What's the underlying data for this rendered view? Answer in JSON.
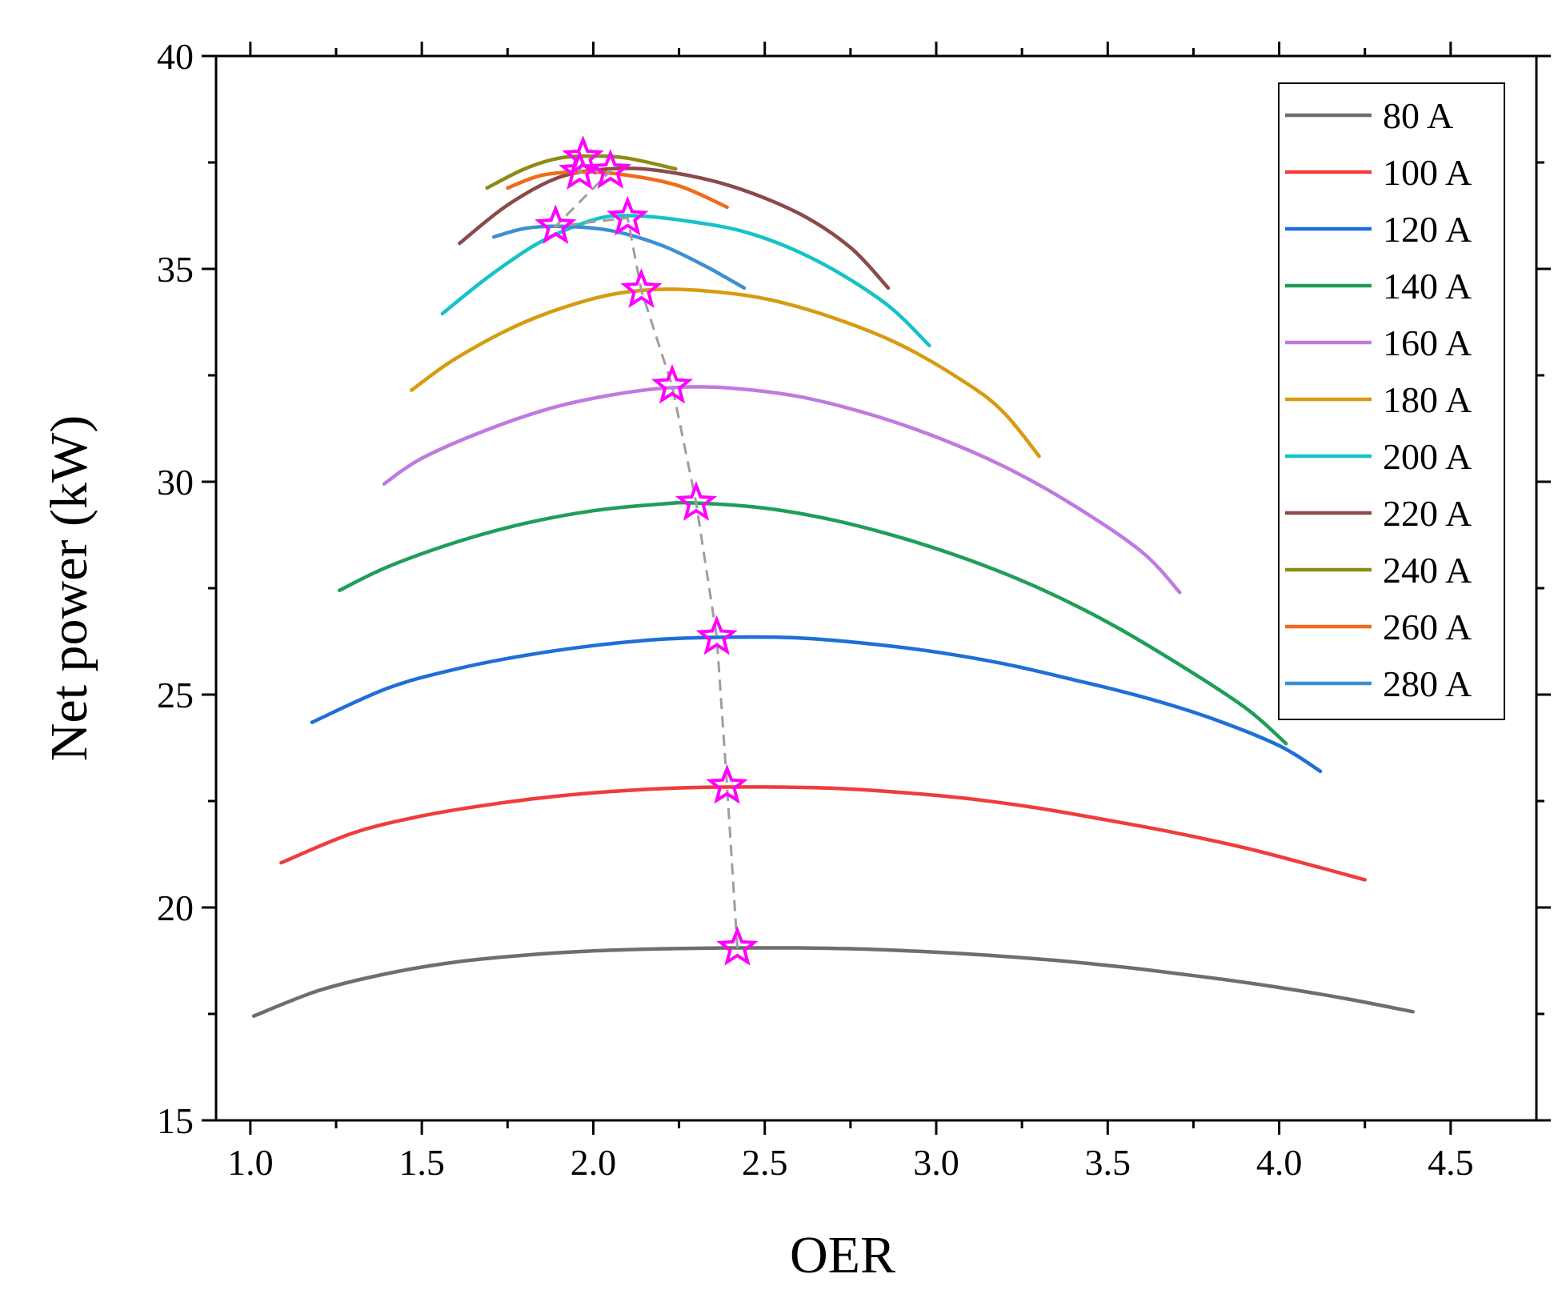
{
  "chart_data": {
    "type": "line",
    "title": "",
    "xlabel": "OER",
    "ylabel": "Net power (kW)",
    "xlim": [
      0.9,
      4.75
    ],
    "ylim": [
      15,
      40
    ],
    "xticks": [
      1.0,
      1.5,
      2.0,
      2.5,
      3.0,
      3.5,
      4.0,
      4.5
    ],
    "xtick_labels": [
      "1.0",
      "1.5",
      "2.0",
      "2.5",
      "3.0",
      "3.5",
      "4.0",
      "4.5"
    ],
    "yticks": [
      15,
      20,
      25,
      30,
      35,
      40
    ],
    "ytick_labels": [
      "15",
      "20",
      "25",
      "30",
      "35",
      "40"
    ],
    "legend_position": "top-right",
    "series": [
      {
        "name": "80 A",
        "color": "#6e6e6e",
        "points": [
          [
            1.01,
            17.45
          ],
          [
            1.2,
            18.05
          ],
          [
            1.4,
            18.45
          ],
          [
            1.6,
            18.72
          ],
          [
            1.8,
            18.88
          ],
          [
            2.0,
            18.98
          ],
          [
            2.2,
            19.03
          ],
          [
            2.4,
            19.05
          ],
          [
            2.6,
            19.05
          ],
          [
            2.8,
            19.02
          ],
          [
            3.0,
            18.95
          ],
          [
            3.2,
            18.85
          ],
          [
            3.4,
            18.72
          ],
          [
            3.6,
            18.55
          ],
          [
            3.8,
            18.35
          ],
          [
            4.0,
            18.12
          ],
          [
            4.2,
            17.85
          ],
          [
            4.39,
            17.55
          ]
        ]
      },
      {
        "name": "100 A",
        "color": "#f03c3c",
        "points": [
          [
            1.09,
            21.05
          ],
          [
            1.3,
            21.75
          ],
          [
            1.5,
            22.15
          ],
          [
            1.7,
            22.42
          ],
          [
            1.9,
            22.62
          ],
          [
            2.1,
            22.75
          ],
          [
            2.3,
            22.82
          ],
          [
            2.5,
            22.83
          ],
          [
            2.7,
            22.8
          ],
          [
            2.9,
            22.7
          ],
          [
            3.1,
            22.55
          ],
          [
            3.3,
            22.33
          ],
          [
            3.5,
            22.05
          ],
          [
            3.7,
            21.75
          ],
          [
            3.9,
            21.4
          ],
          [
            4.1,
            20.98
          ],
          [
            4.25,
            20.65
          ]
        ]
      },
      {
        "name": "120 A",
        "color": "#1f6fd6",
        "points": [
          [
            1.18,
            24.35
          ],
          [
            1.4,
            25.15
          ],
          [
            1.6,
            25.6
          ],
          [
            1.8,
            25.92
          ],
          [
            2.0,
            26.15
          ],
          [
            2.2,
            26.3
          ],
          [
            2.4,
            26.35
          ],
          [
            2.6,
            26.33
          ],
          [
            2.8,
            26.2
          ],
          [
            3.0,
            26.0
          ],
          [
            3.2,
            25.72
          ],
          [
            3.4,
            25.35
          ],
          [
            3.6,
            24.95
          ],
          [
            3.8,
            24.45
          ],
          [
            4.0,
            23.8
          ],
          [
            4.12,
            23.2
          ]
        ]
      },
      {
        "name": "140 A",
        "color": "#1f9e5a",
        "points": [
          [
            1.26,
            27.45
          ],
          [
            1.4,
            28.0
          ],
          [
            1.6,
            28.58
          ],
          [
            1.8,
            29.02
          ],
          [
            2.0,
            29.32
          ],
          [
            2.2,
            29.48
          ],
          [
            2.3,
            29.5
          ],
          [
            2.5,
            29.38
          ],
          [
            2.7,
            29.1
          ],
          [
            2.9,
            28.68
          ],
          [
            3.1,
            28.15
          ],
          [
            3.3,
            27.5
          ],
          [
            3.5,
            26.7
          ],
          [
            3.7,
            25.75
          ],
          [
            3.9,
            24.7
          ],
          [
            4.02,
            23.85
          ]
        ]
      },
      {
        "name": "160 A",
        "color": "#c07adf",
        "points": [
          [
            1.39,
            29.95
          ],
          [
            1.5,
            30.55
          ],
          [
            1.7,
            31.25
          ],
          [
            1.9,
            31.78
          ],
          [
            2.1,
            32.1
          ],
          [
            2.25,
            32.22
          ],
          [
            2.4,
            32.2
          ],
          [
            2.6,
            32.0
          ],
          [
            2.8,
            31.6
          ],
          [
            3.0,
            31.05
          ],
          [
            3.2,
            30.35
          ],
          [
            3.4,
            29.45
          ],
          [
            3.6,
            28.35
          ],
          [
            3.71,
            27.4
          ]
        ]
      },
      {
        "name": "180 A",
        "color": "#d79b10",
        "points": [
          [
            1.47,
            32.15
          ],
          [
            1.6,
            32.9
          ],
          [
            1.8,
            33.75
          ],
          [
            2.0,
            34.3
          ],
          [
            2.15,
            34.5
          ],
          [
            2.3,
            34.5
          ],
          [
            2.5,
            34.3
          ],
          [
            2.7,
            33.85
          ],
          [
            2.9,
            33.2
          ],
          [
            3.1,
            32.25
          ],
          [
            3.2,
            31.6
          ],
          [
            3.3,
            30.6
          ]
        ]
      },
      {
        "name": "200 A",
        "color": "#15c3c7",
        "points": [
          [
            1.56,
            33.95
          ],
          [
            1.7,
            34.85
          ],
          [
            1.85,
            35.65
          ],
          [
            2.0,
            36.15
          ],
          [
            2.1,
            36.25
          ],
          [
            2.25,
            36.15
          ],
          [
            2.45,
            35.85
          ],
          [
            2.65,
            35.2
          ],
          [
            2.85,
            34.2
          ],
          [
            2.98,
            33.2
          ]
        ]
      },
      {
        "name": "220 A",
        "color": "#8c4a4a",
        "points": [
          [
            1.61,
            35.6
          ],
          [
            1.75,
            36.5
          ],
          [
            1.9,
            37.15
          ],
          [
            2.05,
            37.35
          ],
          [
            2.2,
            37.3
          ],
          [
            2.4,
            36.95
          ],
          [
            2.6,
            36.3
          ],
          [
            2.75,
            35.5
          ],
          [
            2.86,
            34.55
          ]
        ]
      },
      {
        "name": "240 A",
        "color": "#8c8c14",
        "points": [
          [
            1.69,
            36.9
          ],
          [
            1.8,
            37.35
          ],
          [
            1.9,
            37.6
          ],
          [
            2.0,
            37.65
          ],
          [
            2.1,
            37.6
          ],
          [
            2.24,
            37.35
          ]
        ]
      },
      {
        "name": "260 A",
        "color": "#f26a1a",
        "points": [
          [
            1.75,
            36.9
          ],
          [
            1.85,
            37.2
          ],
          [
            1.97,
            37.28
          ],
          [
            2.1,
            37.2
          ],
          [
            2.25,
            36.95
          ],
          [
            2.39,
            36.45
          ]
        ]
      },
      {
        "name": "280 A",
        "color": "#3f8fd0",
        "points": [
          [
            1.71,
            35.75
          ],
          [
            1.8,
            35.95
          ],
          [
            1.9,
            36.0
          ],
          [
            2.05,
            35.9
          ],
          [
            2.2,
            35.55
          ],
          [
            2.33,
            35.05
          ],
          [
            2.44,
            34.55
          ]
        ]
      }
    ],
    "optimal_points": {
      "marker": "star",
      "color": "#ff00ff",
      "line_color": "#9e9e9e",
      "line_style": "dashed",
      "points": [
        [
          2.42,
          19.05
        ],
        [
          2.39,
          22.85
        ],
        [
          2.36,
          26.35
        ],
        [
          2.3,
          29.5
        ],
        [
          2.23,
          32.25
        ],
        [
          2.14,
          34.5
        ],
        [
          2.1,
          36.2
        ],
        [
          1.89,
          36.0
        ],
        [
          2.05,
          37.3
        ],
        [
          1.96,
          37.28
        ],
        [
          1.97,
          37.62
        ]
      ]
    }
  }
}
